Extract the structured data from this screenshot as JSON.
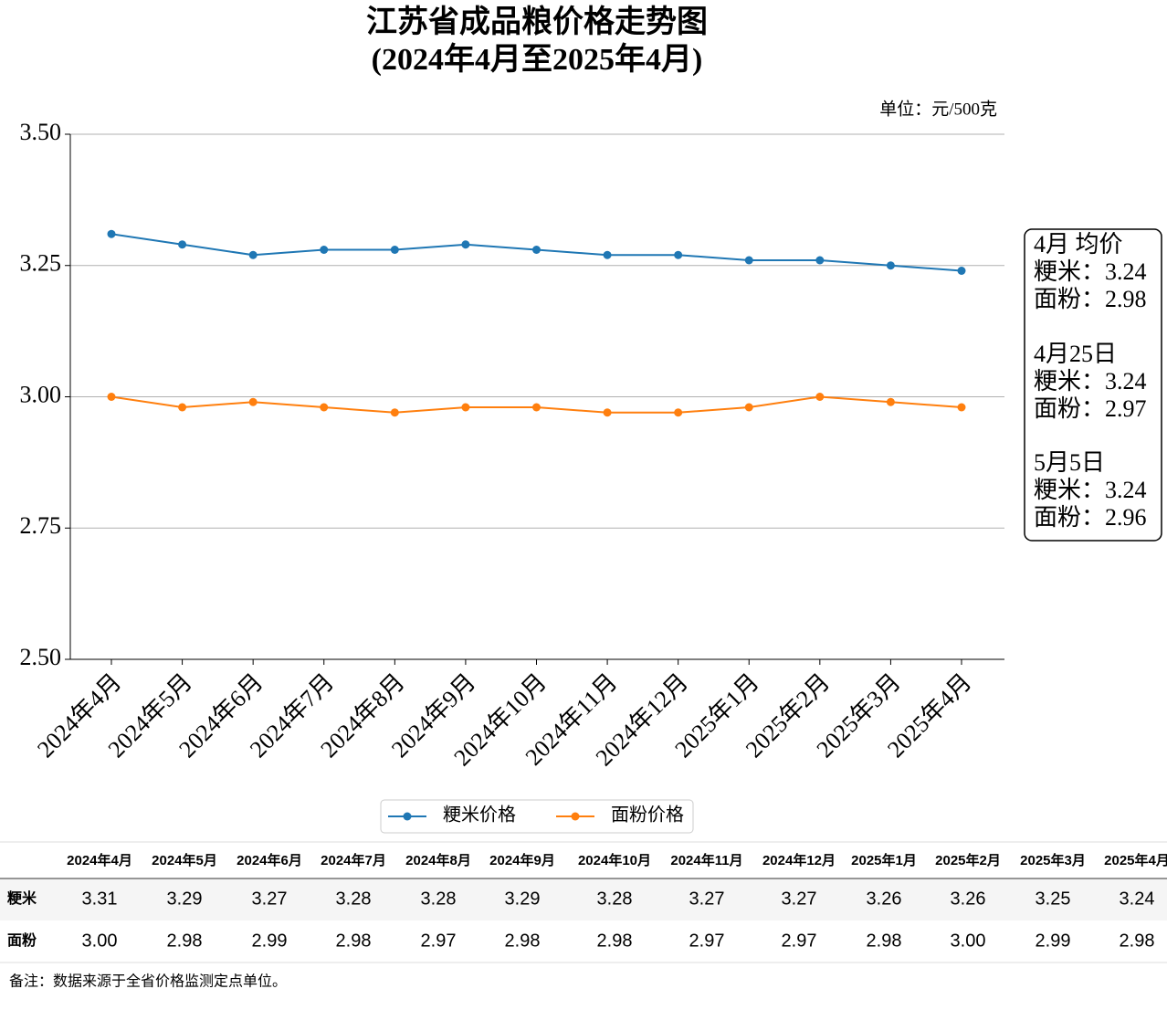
{
  "chart_data": {
    "type": "line",
    "title": "江苏省成品粮价格走势图",
    "subtitle": "(2024年4月至2025年4月)",
    "unit": "单位：元/500克",
    "categories": [
      "2024年4月",
      "2024年5月",
      "2024年6月",
      "2024年7月",
      "2024年8月",
      "2024年9月",
      "2024年10月",
      "2024年11月",
      "2024年12月",
      "2025年1月",
      "2025年2月",
      "2025年3月",
      "2025年4月"
    ],
    "series": [
      {
        "name": "粳米价格",
        "color": "#1f77b4",
        "values": [
          3.31,
          3.29,
          3.27,
          3.28,
          3.28,
          3.29,
          3.28,
          3.27,
          3.27,
          3.26,
          3.26,
          3.25,
          3.24
        ]
      },
      {
        "name": "面粉价格",
        "color": "#ff7f0e",
        "values": [
          3.0,
          2.98,
          2.99,
          2.98,
          2.97,
          2.98,
          2.98,
          2.97,
          2.97,
          2.98,
          3.0,
          2.99,
          2.98
        ]
      }
    ],
    "ylim": [
      2.5,
      3.5
    ],
    "yticks": [
      {
        "value": 2.5,
        "label": "2.50"
      },
      {
        "value": 2.75,
        "label": "2.75"
      },
      {
        "value": 3,
        "label": "3.00"
      },
      {
        "value": 3.25,
        "label": "3.25"
      },
      {
        "value": 3.5,
        "label": "3.50"
      }
    ],
    "grid": true,
    "annotation": [
      "4月 均价",
      "粳米：3.24",
      "面粉：2.98",
      "4月25日",
      "粳米：3.24",
      "面粉：2.97",
      "5月5日",
      "粳米：3.24",
      "面粉：2.96"
    ]
  },
  "table": {
    "rows": [
      {
        "label": "粳米",
        "cells": [
          "3.31",
          "3.29",
          "3.27",
          "3.28",
          "3.28",
          "3.29",
          "3.28",
          "3.27",
          "3.27",
          "3.26",
          "3.26",
          "3.25",
          "3.24"
        ]
      },
      {
        "label": "面粉",
        "cells": [
          "3.00",
          "2.98",
          "2.99",
          "2.98",
          "2.97",
          "2.98",
          "2.98",
          "2.97",
          "2.97",
          "2.98",
          "3.00",
          "2.99",
          "2.98"
        ]
      }
    ]
  },
  "note": "备注：数据来源于全省价格监测定点单位。"
}
